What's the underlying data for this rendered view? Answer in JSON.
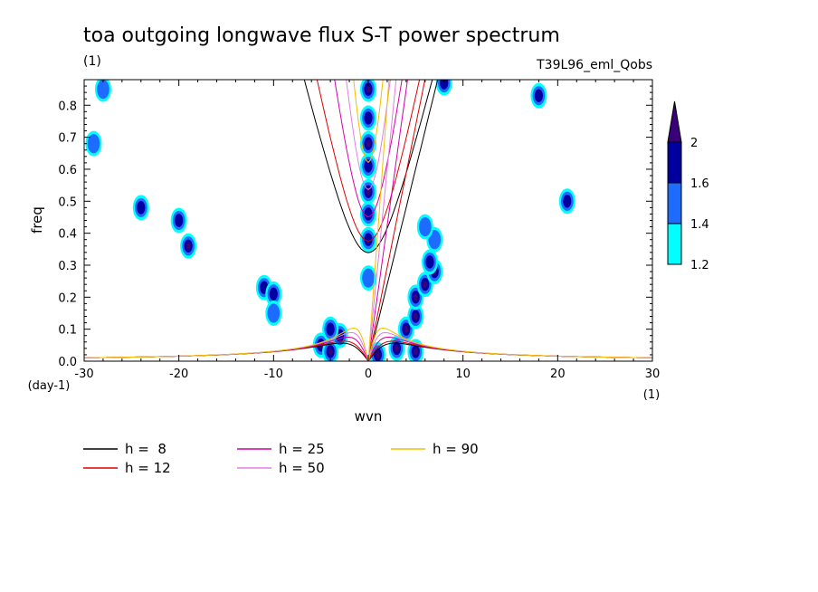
{
  "chart_data": {
    "type": "contour",
    "title": "toa outgoing longwave flux S-T power spectrum",
    "title_units": "(1)",
    "experiment": "T39L96_eml_Qobs",
    "xlabel": "wvn",
    "ylabel": "freq",
    "x_units": "(1)",
    "y_units": "(day-1)",
    "xlim": [
      -30,
      30
    ],
    "ylim": [
      0.0,
      0.88
    ],
    "x_ticks": [
      -30,
      -20,
      -10,
      0,
      10,
      20,
      30
    ],
    "x_tick_labels": [
      "-30",
      "-20",
      "-10",
      "0",
      "10",
      "20",
      "30"
    ],
    "y_ticks": [
      0.0,
      0.1,
      0.2,
      0.3,
      0.4,
      0.5,
      0.6,
      0.7,
      0.8
    ],
    "y_tick_labels": [
      "0.0",
      "0.1",
      "0.2",
      "0.3",
      "0.4",
      "0.5",
      "0.6",
      "0.7",
      "0.8"
    ],
    "colorbar": {
      "levels": [
        1.2,
        1.4,
        1.6,
        2
      ],
      "labels": [
        "1.2",
        "1.4",
        "1.6",
        "2"
      ],
      "colors": [
        "#00ffff",
        "#1e6bff",
        "#0000a0",
        "#3a007a"
      ]
    },
    "dispersion_curves": [
      {
        "name": "h =  8",
        "h": 8,
        "color": "#000000"
      },
      {
        "name": "h = 12",
        "h": 12,
        "color": "#dd0000"
      },
      {
        "name": "h = 25",
        "h": 25,
        "color": "#d400a8"
      },
      {
        "name": "h = 50",
        "h": 50,
        "color": "#e080e0"
      },
      {
        "name": "h = 90",
        "h": 90,
        "color": "#f0c000"
      }
    ],
    "power_blobs": [
      {
        "k": 0,
        "f": 0.85,
        "level": 3
      },
      {
        "k": 0,
        "f": 0.68,
        "level": 3
      },
      {
        "k": 0,
        "f": 0.53,
        "level": 3
      },
      {
        "k": 0,
        "f": 0.61,
        "level": 2
      },
      {
        "k": 0,
        "f": 0.38,
        "level": 2
      },
      {
        "k": 0,
        "f": 0.46,
        "level": 2
      },
      {
        "k": 0,
        "f": 0.76,
        "level": 2
      },
      {
        "k": 0,
        "f": 0.26,
        "level": 1
      },
      {
        "k": -5,
        "f": 0.05,
        "level": 3
      },
      {
        "k": -4,
        "f": 0.03,
        "level": 3
      },
      {
        "k": -3,
        "f": 0.08,
        "level": 2
      },
      {
        "k": 1,
        "f": 0.02,
        "level": 3
      },
      {
        "k": 3,
        "f": 0.04,
        "level": 3
      },
      {
        "k": 5,
        "f": 0.03,
        "level": 3
      },
      {
        "k": 4,
        "f": 0.1,
        "level": 3
      },
      {
        "k": 5,
        "f": 0.14,
        "level": 3
      },
      {
        "k": 5,
        "f": 0.2,
        "level": 3
      },
      {
        "k": 6,
        "f": 0.24,
        "level": 3
      },
      {
        "k": 7,
        "f": 0.28,
        "level": 3
      },
      {
        "k": 6.5,
        "f": 0.31,
        "level": 2
      },
      {
        "k": 7,
        "f": 0.38,
        "level": 1
      },
      {
        "k": 6,
        "f": 0.42,
        "level": 1
      },
      {
        "k": 8,
        "f": 0.87,
        "level": 2
      },
      {
        "k": -24,
        "f": 0.48,
        "level": 2
      },
      {
        "k": -20,
        "f": 0.44,
        "level": 2
      },
      {
        "k": -19,
        "f": 0.36,
        "level": 3
      },
      {
        "k": -11,
        "f": 0.23,
        "level": 2
      },
      {
        "k": -10,
        "f": 0.21,
        "level": 2
      },
      {
        "k": -10,
        "f": 0.15,
        "level": 1
      },
      {
        "k": -4,
        "f": 0.1,
        "level": 2
      },
      {
        "k": 21,
        "f": 0.5,
        "level": 2
      },
      {
        "k": 18,
        "f": 0.83,
        "level": 2
      },
      {
        "k": -28,
        "f": 0.85,
        "level": 1
      },
      {
        "k": -29,
        "f": 0.68,
        "level": 1
      }
    ]
  },
  "legend": [
    {
      "label": "h =  8",
      "color": "#000000"
    },
    {
      "label": "h = 12",
      "color": "#dd0000"
    },
    {
      "label": "h = 25",
      "color": "#d400a8"
    },
    {
      "label": "h = 50",
      "color": "#e080e0"
    },
    {
      "label": "h = 90",
      "color": "#f0c000"
    }
  ]
}
